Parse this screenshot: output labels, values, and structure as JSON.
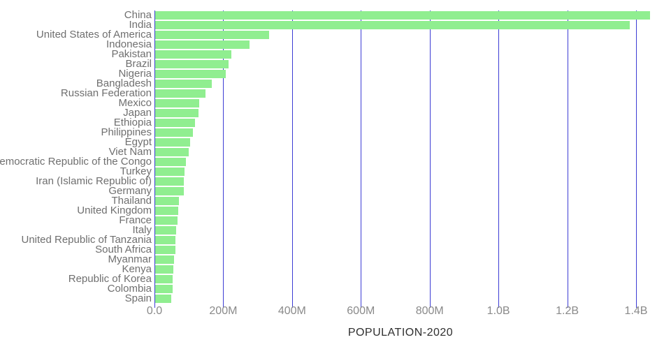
{
  "chart_data": {
    "type": "bar",
    "orientation": "horizontal",
    "title": "",
    "xlabel": "POPULATION-2020",
    "ylabel": "",
    "unit": "persons",
    "grid": true,
    "legend_visible": false,
    "xlim_millions": [
      0,
      1500
    ],
    "xticks": [
      {
        "value_millions": 0,
        "label": "0.0"
      },
      {
        "value_millions": 200,
        "label": "200M"
      },
      {
        "value_millions": 400,
        "label": "400M"
      },
      {
        "value_millions": 600,
        "label": "600M"
      },
      {
        "value_millions": 800,
        "label": "800M"
      },
      {
        "value_millions": 1000,
        "label": "1.0B"
      },
      {
        "value_millions": 1200,
        "label": "1.2B"
      },
      {
        "value_millions": 1400,
        "label": "1.4B"
      }
    ],
    "categories": [
      "China",
      "India",
      "United States of America",
      "Indonesia",
      "Pakistan",
      "Brazil",
      "Nigeria",
      "Bangladesh",
      "Russian Federation",
      "Mexico",
      "Japan",
      "Ethiopia",
      "Philippines",
      "Egypt",
      "Viet Nam",
      "Democratic Republic of the Congo",
      "Turkey",
      "Iran (Islamic Republic of)",
      "Germany",
      "Thailand",
      "United Kingdom",
      "France",
      "Italy",
      "United Republic of Tanzania",
      "South Africa",
      "Myanmar",
      "Kenya",
      "Republic of Korea",
      "Colombia",
      "Spain"
    ],
    "values_millions": [
      1439.32,
      1380.0,
      331.0,
      273.52,
      220.89,
      212.56,
      206.14,
      164.69,
      145.93,
      128.93,
      126.48,
      114.96,
      109.58,
      102.33,
      97.34,
      89.56,
      84.34,
      83.99,
      83.78,
      69.8,
      67.89,
      65.27,
      60.46,
      59.73,
      59.31,
      54.41,
      53.77,
      51.27,
      50.88,
      46.75
    ],
    "colors": {
      "bar_fill": "#90ee90",
      "gridline": "#3c3cd4",
      "category_label_text": "#6f6f6f",
      "tick_label_text": "#8a8a8a",
      "axis_title_text": "#2f2f2f",
      "background": "#ffffff"
    }
  }
}
